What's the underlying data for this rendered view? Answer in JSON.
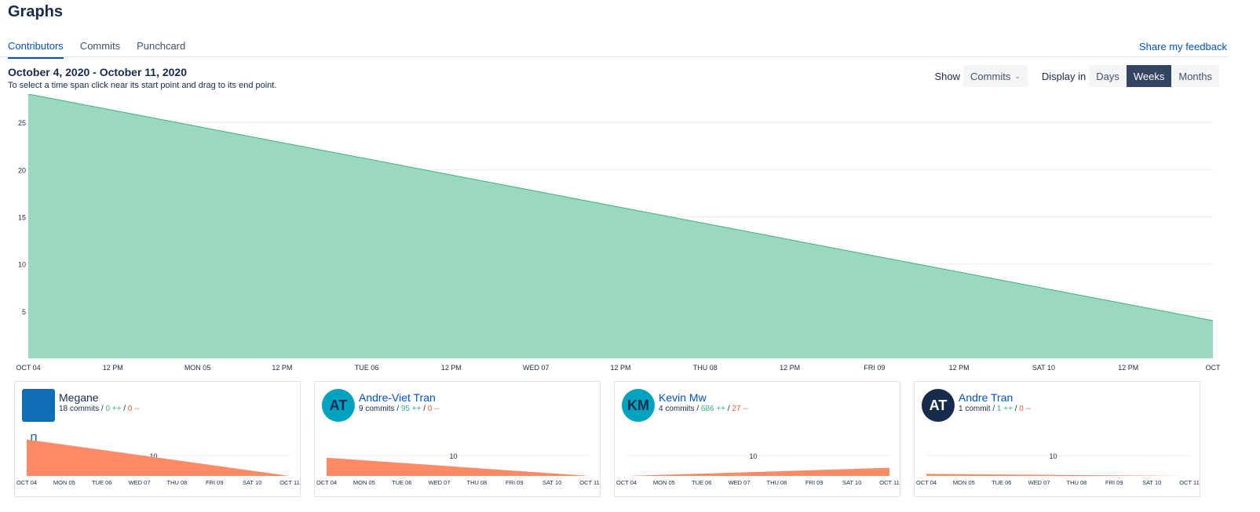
{
  "header": {
    "title": "Graphs"
  },
  "tabs": [
    {
      "label": "Contributors",
      "active": true
    },
    {
      "label": "Commits",
      "active": false
    },
    {
      "label": "Punchcard",
      "active": false
    }
  ],
  "feedback_link": "Share my feedback",
  "date_range": "October 4, 2020 - October 11, 2020",
  "hint": "To select a time span click near its start point and drag to its end point.",
  "controls": {
    "show_label": "Show",
    "show_value": "Commits",
    "display_label": "Display in",
    "display_options": [
      "Days",
      "Weeks",
      "Months"
    ],
    "display_active": "Weeks"
  },
  "colors": {
    "accent": "#0052cc",
    "area_main": "#9ad9bf",
    "area_main_stroke": "#36b37e",
    "area_card": "#ff8a65",
    "additions": "#36b37e",
    "deletions": "#ff5630"
  },
  "chart_data": [
    {
      "type": "area",
      "x_ticks": [
        "OCT 04",
        "12 PM",
        "MON 05",
        "12 PM",
        "TUE 06",
        "12 PM",
        "WED 07",
        "12 PM",
        "THU 08",
        "12 PM",
        "FRI 09",
        "12 PM",
        "SAT 10",
        "12 PM",
        "OCT"
      ],
      "y_ticks": [
        5,
        10,
        15,
        20,
        25
      ],
      "ylim": [
        0,
        28
      ],
      "series": [
        {
          "x": [
            "2020-10-04",
            "2020-10-11"
          ],
          "values": [
            28,
            4
          ]
        }
      ]
    },
    {
      "type": "area",
      "x_ticks": [
        "OCT 04",
        "MON 05",
        "TUE 06",
        "WED 07",
        "THU 08",
        "FRI 09",
        "SAT 10",
        "OCT 11"
      ],
      "y_ticks": [
        10
      ],
      "ylim": [
        0,
        12
      ],
      "series": [
        {
          "x": [
            "2020-10-04",
            "2020-10-11"
          ],
          "values": [
            18,
            0
          ]
        }
      ]
    },
    {
      "type": "area",
      "x_ticks": [
        "OCT 04",
        "MON 05",
        "TUE 06",
        "WED 07",
        "THU 08",
        "FRI 09",
        "SAT 10",
        "OCT 11"
      ],
      "y_ticks": [
        10
      ],
      "ylim": [
        0,
        12
      ],
      "series": [
        {
          "x": [
            "2020-10-04",
            "2020-10-11"
          ],
          "values": [
            9,
            0
          ]
        }
      ]
    },
    {
      "type": "area",
      "x_ticks": [
        "OCT 04",
        "MON 05",
        "TUE 06",
        "WED 07",
        "THU 08",
        "FRI 09",
        "SAT 10",
        "OCT 11"
      ],
      "y_ticks": [
        10
      ],
      "ylim": [
        0,
        12
      ],
      "series": [
        {
          "x": [
            "2020-10-04",
            "2020-10-11"
          ],
          "values": [
            0,
            4
          ]
        }
      ]
    },
    {
      "type": "area",
      "x_ticks": [
        "OCT 04",
        "MON 05",
        "TUE 06",
        "WED 07",
        "THU 08",
        "FRI 09",
        "SAT 10",
        "OCT 11"
      ],
      "y_ticks": [
        10
      ],
      "ylim": [
        0,
        12
      ],
      "series": [
        {
          "x": [
            "2020-10-04",
            "2020-10-11"
          ],
          "values": [
            1,
            0
          ]
        }
      ]
    }
  ],
  "contributors": [
    {
      "name": "Megane",
      "initials": "",
      "avatar_icon": "power-icon",
      "avatar_color": "#0f6eb4",
      "commits": "18 commits",
      "additions": "0 ++",
      "deletions": "0 --",
      "linked": false
    },
    {
      "name": "Andre-Viet Tran",
      "initials": "AT",
      "avatar_color": "#00a3bf",
      "commits": "9 commits",
      "additions": "95 ++",
      "deletions": "0 --",
      "linked": true
    },
    {
      "name": "Kevin Mw",
      "initials": "KM",
      "avatar_color": "#00a3bf",
      "commits": "4 commits",
      "additions": "686 ++",
      "deletions": "27 --",
      "linked": true
    },
    {
      "name": "Andre Tran",
      "initials": "AT",
      "avatar_color": "#172b4d",
      "commits": "1 commit",
      "additions": "1 ++",
      "deletions": "0 --",
      "linked": true
    }
  ]
}
